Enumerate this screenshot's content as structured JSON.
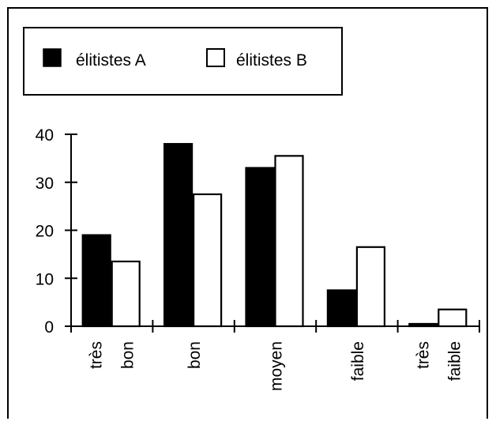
{
  "chart_data": {
    "type": "bar",
    "categories": [
      "très bon",
      "bon",
      "moyen",
      "faible",
      "très faible"
    ],
    "category_label_lines": [
      [
        "très",
        "bon"
      ],
      [
        "bon"
      ],
      [
        "moyen"
      ],
      [
        "faible"
      ],
      [
        "très",
        "faible"
      ]
    ],
    "series": [
      {
        "name": "élitistes A",
        "values": [
          19,
          38,
          33,
          7.5,
          0.5
        ],
        "fill": "#000000"
      },
      {
        "name": "élitistes B",
        "values": [
          13.5,
          27.5,
          35.5,
          16.5,
          3.5
        ],
        "fill": "#ffffff"
      }
    ],
    "ylim": [
      0,
      40
    ],
    "yticks": [
      0,
      10,
      20,
      30,
      40
    ],
    "title": "",
    "xlabel": "",
    "ylabel": "",
    "legend_position": "top-left",
    "grid": false
  }
}
